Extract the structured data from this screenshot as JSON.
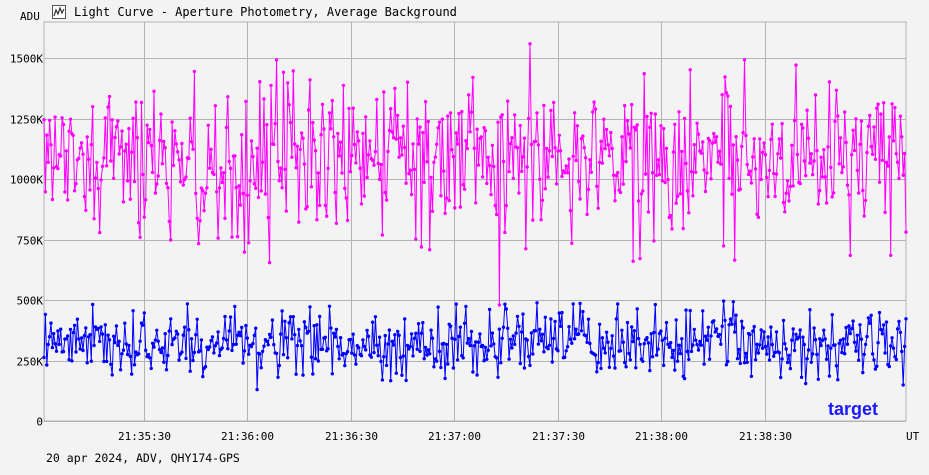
{
  "window": {
    "title": "Light Curve - Aperture Photometry, Average Background",
    "footer": "20 apr 2024, ADV, QHY174-GPS"
  },
  "icons": {
    "app": "light-curve-app-icon"
  },
  "colors": {
    "background": "#f3f3f3",
    "grid": "#b3b3b3",
    "series_magenta": "#ff00ff",
    "series_blue": "#0000ff",
    "label_target": "#1a1aff"
  },
  "chart_data": {
    "type": "line",
    "title": "Light Curve - Aperture Photometry, Average Background",
    "xlabel": "UT",
    "ylabel": "ADU",
    "xlim": [
      "21:35:01",
      "21:39:11"
    ],
    "ylim": [
      0,
      1650000
    ],
    "grid": true,
    "markers": true,
    "y_ticks": [
      {
        "value": 0,
        "label": "0"
      },
      {
        "value": 250000,
        "label": "250K"
      },
      {
        "value": 500000,
        "label": "500K"
      },
      {
        "value": 750000,
        "label": "750K"
      },
      {
        "value": 1000000,
        "label": "1000K"
      },
      {
        "value": 1250000,
        "label": "1250K"
      },
      {
        "value": 1500000,
        "label": "1500K"
      }
    ],
    "x_ticks": [
      {
        "value": "21:35:30",
        "label": "21:35:30"
      },
      {
        "value": "21:36:00",
        "label": "21:36:00"
      },
      {
        "value": "21:36:30",
        "label": "21:36:30"
      },
      {
        "value": "21:37:00",
        "label": "21:37:00"
      },
      {
        "value": "21:37:30",
        "label": "21:37:30"
      },
      {
        "value": "21:38:00",
        "label": "21:38:00"
      },
      {
        "value": "21:38:30",
        "label": "21:38:30"
      }
    ],
    "series": [
      {
        "color": "#ff00ff",
        "mean": 1080000,
        "typical_range": [
          800000,
          1400000
        ],
        "min": 480000,
        "max": 1560000,
        "min_at": "21:37:13",
        "max_at": "21:37:22"
      },
      {
        "name": "target",
        "color": "#0000ff",
        "mean": 315000,
        "typical_range": [
          180000,
          450000
        ],
        "min": 100000,
        "max": 530000
      }
    ],
    "annotations": [
      {
        "text": "target",
        "series": "target",
        "position": "bottom-right"
      }
    ]
  }
}
